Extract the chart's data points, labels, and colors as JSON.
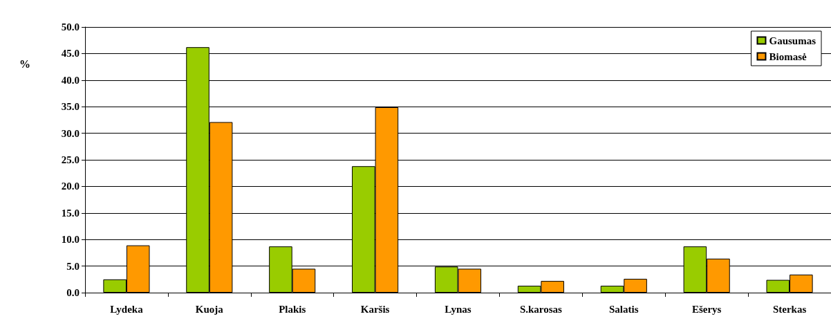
{
  "chart_data": {
    "type": "bar",
    "ylabel": "%",
    "categories": [
      "Lydeka",
      "Kuoja",
      "Plakis",
      "Karšis",
      "Lynas",
      "S.karosas",
      "Salatis",
      "Ešerys",
      "Sterkas"
    ],
    "series": [
      {
        "name": "Gausumas",
        "color": "#99cc00",
        "values": [
          2.5,
          46.2,
          8.7,
          23.8,
          4.9,
          1.3,
          1.3,
          8.7,
          2.4
        ]
      },
      {
        "name": "Biomasė",
        "color": "#ff9900",
        "values": [
          8.9,
          32.1,
          4.5,
          34.9,
          4.5,
          2.2,
          2.6,
          6.4,
          3.4
        ]
      }
    ],
    "ylim": [
      0,
      50
    ],
    "yticks": [
      {
        "value": 0,
        "label": "0.0"
      },
      {
        "value": 5,
        "label": "5.0"
      },
      {
        "value": 10,
        "label": "10.0"
      },
      {
        "value": 15,
        "label": "15.0"
      },
      {
        "value": 20,
        "label": "20.0"
      },
      {
        "value": 25,
        "label": "25.0"
      },
      {
        "value": 30,
        "label": "30.0"
      },
      {
        "value": 35,
        "label": "35.0"
      },
      {
        "value": 40,
        "label": "40.0"
      },
      {
        "value": 45,
        "label": "45.0"
      },
      {
        "value": 50,
        "label": "50.0"
      }
    ],
    "grid": "y",
    "legend": "top right"
  }
}
